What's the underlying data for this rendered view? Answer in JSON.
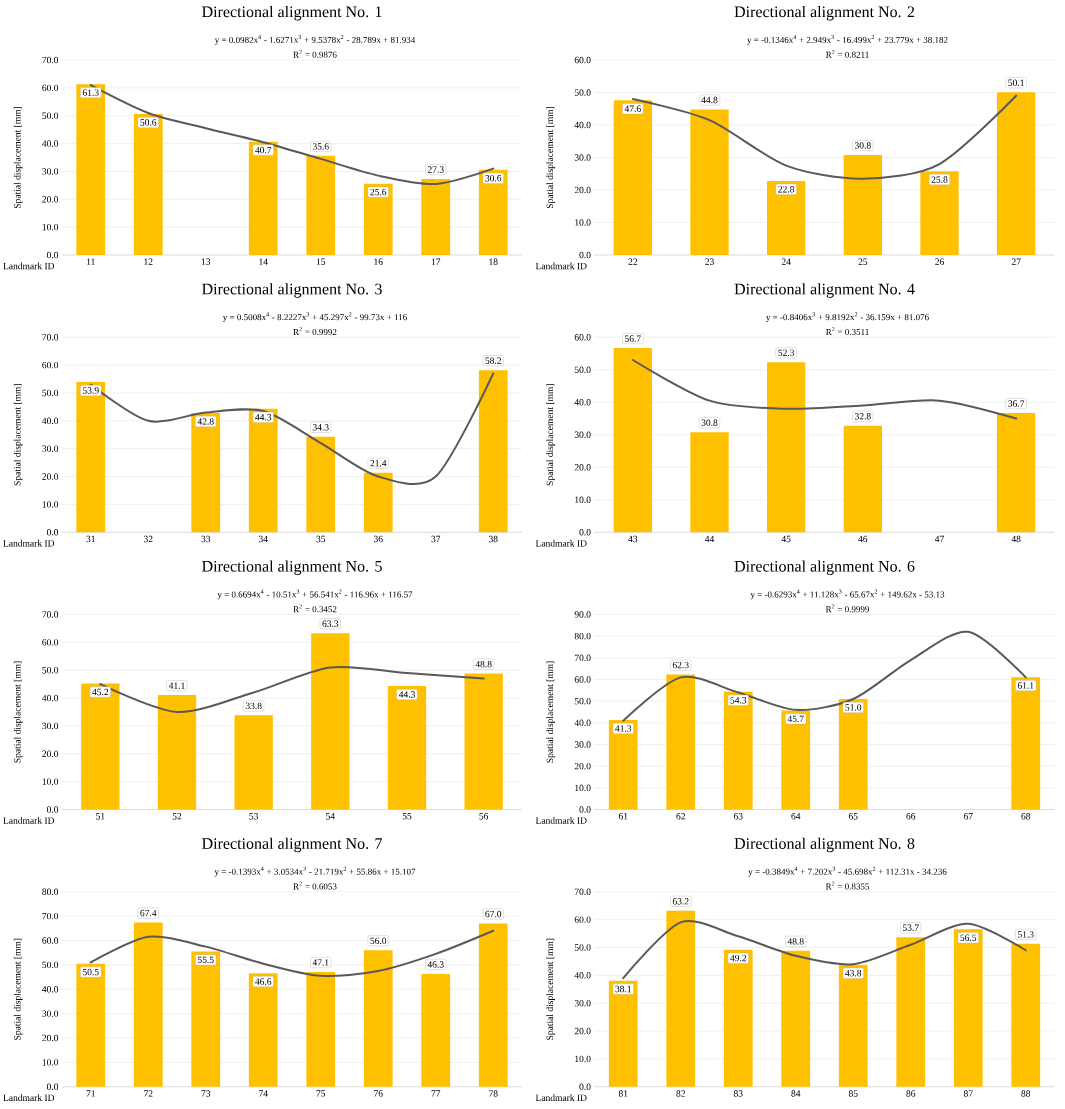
{
  "chart_data": [
    {
      "type": "bar",
      "title": "Directional alignment No. 1",
      "xlabel": "Landmark ID",
      "ylabel": "Spatial displacement [mm]",
      "grid": "y",
      "categories": [
        "11",
        "12",
        "13",
        "14",
        "15",
        "16",
        "17",
        "18"
      ],
      "ylim": [
        0,
        70
      ],
      "yticks": [
        {
          "value": 0,
          "label": "0.0"
        },
        {
          "value": 10,
          "label": "10.0"
        },
        {
          "value": 20,
          "label": "20.0"
        },
        {
          "value": 30,
          "label": "30.0"
        },
        {
          "value": 40,
          "label": "40.0"
        },
        {
          "value": 50,
          "label": "50.0"
        },
        {
          "value": 60,
          "label": "60.0"
        },
        {
          "value": 70,
          "label": "70.0"
        }
      ],
      "annotations": [
        "y = 0.0982x$^{4}$ - 1.6271x$^{3}$ + 9.5378x$^{2}$ - 28.789x + 81.934",
        "R$^{2}$ = 0.9876"
      ],
      "series": [
        {
          "color": "#ffc000",
          "values": [
            61.3,
            50.6,
            null,
            40.7,
            35.6,
            25.6,
            27.3,
            30.6
          ],
          "value_labels": [
            "61.3",
            "50.6",
            null,
            "40.7",
            "35.6",
            "25.6",
            "27.3",
            "30.6"
          ]
        },
        {
          "type": "line",
          "color": "#595959",
          "values": [
            61,
            51,
            45.5,
            40.5,
            34.5,
            28.5,
            25.5,
            31
          ]
        }
      ]
    },
    {
      "type": "bar",
      "title": "Directional alignment No. 2",
      "xlabel": "Landmark ID",
      "ylabel": "Spatial displacement [mm]",
      "grid": "y",
      "categories": [
        "22",
        "23",
        "24",
        "25",
        "26",
        "27"
      ],
      "ylim": [
        0,
        60
      ],
      "yticks": [
        {
          "value": 0,
          "label": "0.0"
        },
        {
          "value": 10,
          "label": "10.0"
        },
        {
          "value": 20,
          "label": "20.0"
        },
        {
          "value": 30,
          "label": "30.0"
        },
        {
          "value": 40,
          "label": "40.0"
        },
        {
          "value": 50,
          "label": "50.0"
        },
        {
          "value": 60,
          "label": "60.0"
        }
      ],
      "annotations": [
        "y = -0.1346x$^{4}$ + 2.949x$^{3}$ - 16.499x$^{2}$ + 23.779x + 38.182",
        "R$^{2}$ = 0.8211"
      ],
      "series": [
        {
          "color": "#ffc000",
          "values": [
            47.6,
            44.8,
            22.8,
            30.8,
            25.8,
            50.1
          ],
          "value_labels": [
            "47.6",
            "44.8",
            "22.8",
            "30.8",
            "25.8",
            "50.1"
          ]
        },
        {
          "type": "line",
          "color": "#595959",
          "values": [
            48,
            41.5,
            27.5,
            23.5,
            28,
            49
          ]
        }
      ]
    },
    {
      "type": "bar",
      "title": "Directional alignment No. 3",
      "xlabel": "Landmark ID",
      "ylabel": "Spatial displacement [mm]",
      "grid": "y",
      "categories": [
        "31",
        "32",
        "33",
        "34",
        "35",
        "36",
        "37",
        "38"
      ],
      "ylim": [
        0,
        70
      ],
      "yticks": [
        {
          "value": 0,
          "label": "0.0"
        },
        {
          "value": 10,
          "label": "10.0"
        },
        {
          "value": 20,
          "label": "20.0"
        },
        {
          "value": 30,
          "label": "30.0"
        },
        {
          "value": 40,
          "label": "40.0"
        },
        {
          "value": 50,
          "label": "50.0"
        },
        {
          "value": 60,
          "label": "60.0"
        },
        {
          "value": 70,
          "label": "70.0"
        }
      ],
      "annotations": [
        "y = 0.5008x$^{4}$ - 8.2227x$^{3}$ + 45.297x$^{2}$ - 99.73x + 116",
        "R$^{2}$ = 0.9992"
      ],
      "series": [
        {
          "color": "#ffc000",
          "values": [
            53.9,
            null,
            42.8,
            44.3,
            34.3,
            21.4,
            null,
            58.2
          ],
          "value_labels": [
            "53.9",
            null,
            "42.8",
            "44.3",
            "34.3",
            "21.4",
            null,
            "58.2"
          ]
        },
        {
          "type": "line",
          "color": "#595959",
          "values": [
            53,
            40,
            43,
            43.5,
            32,
            20,
            20,
            57
          ]
        }
      ]
    },
    {
      "type": "bar",
      "title": "Directional alignment No. 4",
      "xlabel": "Landmark ID",
      "ylabel": "Spatial displacement [mm]",
      "grid": "y",
      "categories": [
        "43",
        "44",
        "45",
        "46",
        "47",
        "48"
      ],
      "ylim": [
        0,
        60
      ],
      "yticks": [
        {
          "value": 0,
          "label": "0.0"
        },
        {
          "value": 10,
          "label": "10.0"
        },
        {
          "value": 20,
          "label": "20.0"
        },
        {
          "value": 30,
          "label": "30.0"
        },
        {
          "value": 40,
          "label": "40.0"
        },
        {
          "value": 50,
          "label": "50.0"
        },
        {
          "value": 60,
          "label": "60.0"
        }
      ],
      "annotations": [
        "y = -0.8406x$^{3}$ + 9.8192x$^{2}$ - 36.159x + 81.076",
        "R$^{2}$ = 0.3511"
      ],
      "series": [
        {
          "color": "#ffc000",
          "values": [
            56.7,
            30.8,
            52.3,
            32.8,
            null,
            36.7
          ],
          "value_labels": [
            "56.7",
            "30.8",
            "52.3",
            "32.8",
            null,
            "36.7"
          ]
        },
        {
          "type": "line",
          "color": "#595959",
          "values": [
            53,
            40.5,
            38,
            39,
            40.5,
            35
          ]
        }
      ]
    },
    {
      "type": "bar",
      "title": "Directional alignment No. 5",
      "xlabel": "Landmark ID",
      "ylabel": "Spatial displacement [mm]",
      "grid": "y",
      "categories": [
        "51",
        "52",
        "53",
        "54",
        "55",
        "56"
      ],
      "ylim": [
        0,
        70
      ],
      "yticks": [
        {
          "value": 0,
          "label": "0.0"
        },
        {
          "value": 10,
          "label": "10.0"
        },
        {
          "value": 20,
          "label": "20.0"
        },
        {
          "value": 30,
          "label": "30.0"
        },
        {
          "value": 40,
          "label": "40.0"
        },
        {
          "value": 50,
          "label": "50.0"
        },
        {
          "value": 60,
          "label": "60.0"
        },
        {
          "value": 70,
          "label": "70.0"
        }
      ],
      "annotations": [
        "y = 0.6694x$^{4}$ - 10.51x$^{3}$ + 56.541x$^{2}$ - 116.96x + 116.57",
        "R$^{2}$ = 0.3452"
      ],
      "series": [
        {
          "color": "#ffc000",
          "values": [
            45.2,
            41.1,
            33.8,
            63.3,
            44.3,
            48.8
          ],
          "value_labels": [
            "45.2",
            "41.1",
            "33.8",
            "63.3",
            "44.3",
            "48.8"
          ]
        },
        {
          "type": "line",
          "color": "#595959",
          "values": [
            45,
            35,
            42,
            51,
            49,
            47
          ]
        }
      ]
    },
    {
      "type": "bar",
      "title": "Directional alignment No. 6",
      "xlabel": "Landmark ID",
      "ylabel": "Spatial displacement [mm]",
      "grid": "y",
      "categories": [
        "61",
        "62",
        "63",
        "64",
        "65",
        "66",
        "67",
        "68"
      ],
      "ylim": [
        0,
        90
      ],
      "yticks": [
        {
          "value": 0,
          "label": "0.0"
        },
        {
          "value": 10,
          "label": "10.0"
        },
        {
          "value": 20,
          "label": "20.0"
        },
        {
          "value": 30,
          "label": "30.0"
        },
        {
          "value": 40,
          "label": "40.0"
        },
        {
          "value": 50,
          "label": "50.0"
        },
        {
          "value": 60,
          "label": "60.0"
        },
        {
          "value": 70,
          "label": "70.0"
        },
        {
          "value": 80,
          "label": "80.0"
        },
        {
          "value": 90,
          "label": "90.0"
        }
      ],
      "annotations": [
        "y = -0.6293x$^{4}$ + 11.128x$^{3}$ - 65.67x$^{2}$ + 149.62x - 53.13",
        "R$^{2}$ = 0.9999"
      ],
      "series": [
        {
          "color": "#ffc000",
          "values": [
            41.3,
            62.3,
            54.3,
            45.7,
            51.0,
            null,
            null,
            61.1
          ],
          "value_labels": [
            "41.3",
            "62.3",
            "54.3",
            "45.7",
            "51.0",
            null,
            null,
            "61.1"
          ]
        },
        {
          "type": "line",
          "color": "#595959",
          "values": [
            41,
            61,
            54,
            46,
            51,
            69,
            82,
            61
          ]
        }
      ]
    },
    {
      "type": "bar",
      "title": "Directional alignment No. 7",
      "xlabel": "Landmark ID",
      "ylabel": "Spatial displacement [mm]",
      "grid": "y",
      "categories": [
        "71",
        "72",
        "73",
        "74",
        "75",
        "76",
        "77",
        "78"
      ],
      "ylim": [
        0,
        80
      ],
      "yticks": [
        {
          "value": 0,
          "label": "0.0"
        },
        {
          "value": 10,
          "label": "10.0"
        },
        {
          "value": 20,
          "label": "20.0"
        },
        {
          "value": 30,
          "label": "30.0"
        },
        {
          "value": 40,
          "label": "40.0"
        },
        {
          "value": 50,
          "label": "50.0"
        },
        {
          "value": 60,
          "label": "60.0"
        },
        {
          "value": 70,
          "label": "70.0"
        },
        {
          "value": 80,
          "label": "80.0"
        }
      ],
      "annotations": [
        "y = -0.1393x$^{4}$ + 3.0534x$^{3}$ - 21.719x$^{2}$ + 55.86x + 15.107",
        "R$^{2}$ = 0.6053"
      ],
      "series": [
        {
          "color": "#ffc000",
          "values": [
            50.5,
            67.4,
            55.5,
            46.6,
            47.1,
            56.0,
            46.3,
            67.0
          ],
          "value_labels": [
            "50.5",
            "67.4",
            "55.5",
            "46.6",
            "47.1",
            "56.0",
            "46.3",
            "67.0"
          ]
        },
        {
          "type": "line",
          "color": "#595959",
          "values": [
            51,
            61.5,
            57.5,
            50.5,
            45.5,
            47.5,
            54.5,
            64
          ]
        }
      ]
    },
    {
      "type": "bar",
      "title": "Directional alignment No. 8",
      "xlabel": "Landmark ID",
      "ylabel": "Spatial displacement [mm]",
      "grid": "y",
      "categories": [
        "81",
        "82",
        "83",
        "84",
        "85",
        "86",
        "87",
        "88"
      ],
      "ylim": [
        0,
        70
      ],
      "yticks": [
        {
          "value": 0,
          "label": "0.0"
        },
        {
          "value": 10,
          "label": "10.0"
        },
        {
          "value": 20,
          "label": "20.0"
        },
        {
          "value": 30,
          "label": "30.0"
        },
        {
          "value": 40,
          "label": "40.0"
        },
        {
          "value": 50,
          "label": "50.0"
        },
        {
          "value": 60,
          "label": "60.0"
        },
        {
          "value": 70,
          "label": "70.0"
        }
      ],
      "annotations": [
        "y = -0.3849x$^{4}$ + 7.202x$^{3}$ - 45.698x$^{2}$ + 112.31x - 34.236",
        "R$^{2}$ = 0.8355"
      ],
      "series": [
        {
          "color": "#ffc000",
          "values": [
            38.1,
            63.2,
            49.2,
            48.8,
            43.8,
            53.7,
            56.5,
            51.3
          ],
          "value_labels": [
            "38.1",
            "63.2",
            "49.2",
            "48.8",
            "43.8",
            "53.7",
            "56.5",
            "51.3"
          ]
        },
        {
          "type": "line",
          "color": "#595959",
          "values": [
            39,
            59,
            54,
            47,
            44,
            51,
            58.5,
            49
          ]
        }
      ]
    }
  ]
}
